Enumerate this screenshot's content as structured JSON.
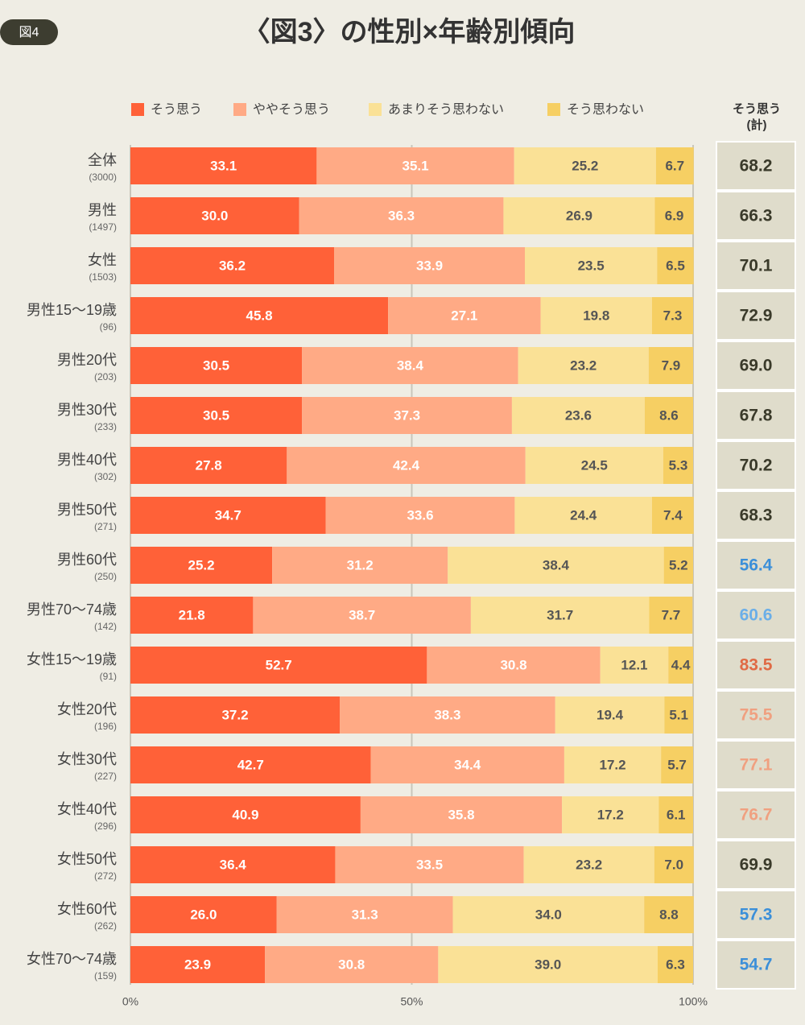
{
  "badge": "図4",
  "chart_data": {
    "type": "stacked-bar-horizontal",
    "title": "〈図3〉の性別×年齢別傾向",
    "categories": [
      "全体",
      "男性",
      "女性",
      "男性15〜19歳",
      "男性20代",
      "男性30代",
      "男性40代",
      "男性50代",
      "男性60代",
      "男性70〜74歳",
      "女性15〜19歳",
      "女性20代",
      "女性30代",
      "女性40代",
      "女性50代",
      "女性60代",
      "女性70〜74歳"
    ],
    "sample_sizes": [
      "(3000)",
      "(1497)",
      "(1503)",
      "(96)",
      "(203)",
      "(233)",
      "(302)",
      "(271)",
      "(250)",
      "(142)",
      "(91)",
      "(196)",
      "(227)",
      "(296)",
      "(272)",
      "(262)",
      "(159)"
    ],
    "series": [
      {
        "name": "そう思う",
        "color": "#ff6138",
        "label_color": "#ffffff",
        "values": [
          33.1,
          30.0,
          36.2,
          45.8,
          30.5,
          30.5,
          27.8,
          34.7,
          25.2,
          21.8,
          52.7,
          37.2,
          42.7,
          40.9,
          36.4,
          26.0,
          23.9
        ],
        "value_labels": [
          "33.1",
          "30.0",
          "36.2",
          "45.8",
          "30.5",
          "30.5",
          "27.8",
          "34.7",
          "25.2",
          "21.8",
          "52.7",
          "37.2",
          "42.7",
          "40.9",
          "36.4",
          "26.0",
          "23.9"
        ]
      },
      {
        "name": "ややそう思う",
        "color": "#ffaa85",
        "label_color": "#ffffff",
        "values": [
          35.1,
          36.3,
          33.9,
          27.1,
          38.4,
          37.3,
          42.4,
          33.6,
          31.2,
          38.7,
          30.8,
          38.3,
          34.4,
          35.8,
          33.5,
          31.3,
          30.8
        ],
        "value_labels": [
          "35.1",
          "36.3",
          "33.9",
          "27.1",
          "38.4",
          "37.3",
          "42.4",
          "33.6",
          "31.2",
          "38.7",
          "30.8",
          "38.3",
          "34.4",
          "35.8",
          "33.5",
          "31.3",
          "30.8"
        ]
      },
      {
        "name": "あまりそう思わない",
        "color": "#fae196",
        "label_color": "#555555",
        "values": [
          25.2,
          26.9,
          23.5,
          19.8,
          23.2,
          23.6,
          24.5,
          24.4,
          38.4,
          31.7,
          12.1,
          19.4,
          17.2,
          17.2,
          23.2,
          34.0,
          39.0
        ],
        "value_labels": [
          "25.2",
          "26.9",
          "23.5",
          "19.8",
          "23.2",
          "23.6",
          "24.5",
          "24.4",
          "38.4",
          "31.7",
          "12.1",
          "19.4",
          "17.2",
          "17.2",
          "23.2",
          "34.0",
          "39.0"
        ]
      },
      {
        "name": "そう思わない",
        "color": "#f6cf63",
        "label_color": "#555555",
        "values": [
          6.7,
          6.9,
          6.5,
          7.3,
          7.9,
          8.6,
          5.3,
          7.4,
          5.2,
          7.7,
          4.4,
          5.1,
          5.7,
          6.1,
          7.0,
          8.8,
          6.3
        ],
        "value_labels": [
          "6.7",
          "6.9",
          "6.5",
          "7.3",
          "7.9",
          "8.6",
          "5.3",
          "7.4",
          "5.2",
          "7.7",
          "4.4",
          "5.1",
          "5.7",
          "6.1",
          "7.0",
          "8.8",
          "6.3"
        ]
      }
    ],
    "totals": {
      "header": [
        "そう思う",
        "(計)"
      ],
      "values": [
        68.2,
        66.3,
        70.1,
        72.9,
        69.0,
        67.8,
        70.2,
        68.3,
        56.4,
        60.6,
        83.5,
        75.5,
        77.1,
        76.7,
        69.9,
        57.3,
        54.7
      ],
      "value_labels": [
        "68.2",
        "66.3",
        "70.1",
        "72.9",
        "69.0",
        "67.8",
        "70.2",
        "68.3",
        "56.4",
        "60.6",
        "83.5",
        "75.5",
        "77.1",
        "76.7",
        "69.9",
        "57.3",
        "54.7"
      ],
      "colors": [
        "#3a3a2a",
        "#3a3a2a",
        "#3a3a2a",
        "#3a3a2a",
        "#3a3a2a",
        "#3a3a2a",
        "#3a3a2a",
        "#3a3a2a",
        "#3b8fd9",
        "#6aaee8",
        "#e06a45",
        "#f0a080",
        "#f0a080",
        "#f0a080",
        "#3a3a2a",
        "#3b8fd9",
        "#3b8fd9"
      ]
    },
    "xlim": [
      0,
      100
    ],
    "xticks": [
      {
        "value": 0,
        "label": "0%"
      },
      {
        "value": 50,
        "label": "50%"
      },
      {
        "value": 100,
        "label": "100%"
      }
    ],
    "grid": true
  }
}
